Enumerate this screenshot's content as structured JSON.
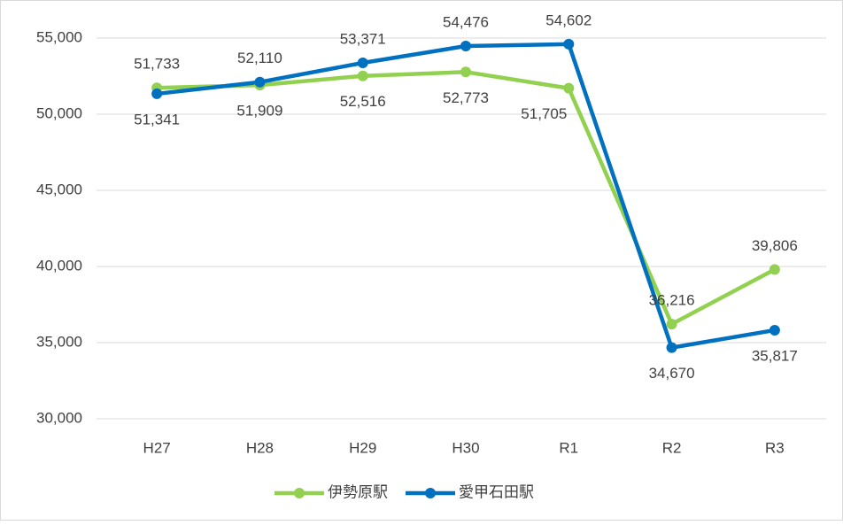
{
  "chart_data": {
    "type": "line",
    "categories": [
      "H27",
      "H28",
      "H29",
      "H30",
      "R1",
      "R2",
      "R3"
    ],
    "series": [
      {
        "name": "伊勢原駅",
        "color": "#92d050",
        "values": [
          51733,
          51909,
          52516,
          52773,
          51705,
          36216,
          39806
        ],
        "value_labels": [
          "51,733",
          "51,909",
          "52,516",
          "52,773",
          "51,705",
          "36,216",
          "39,806"
        ]
      },
      {
        "name": "愛甲石田駅",
        "color": "#0070c0",
        "values": [
          51341,
          52110,
          53371,
          54476,
          54602,
          34670,
          35817
        ],
        "value_labels": [
          "51,341",
          "52,110",
          "53,371",
          "54,476",
          "54,602",
          "34,670",
          "35,817"
        ]
      }
    ],
    "ylim": [
      30000,
      55000
    ],
    "yticks": [
      {
        "value": 30000,
        "label": "30,000"
      },
      {
        "value": 35000,
        "label": "35,000"
      },
      {
        "value": 40000,
        "label": "40,000"
      },
      {
        "value": 45000,
        "label": "45,000"
      },
      {
        "value": 50000,
        "label": "50,000"
      },
      {
        "value": 55000,
        "label": "55,000"
      }
    ],
    "grid": true,
    "legend": "bottom"
  }
}
